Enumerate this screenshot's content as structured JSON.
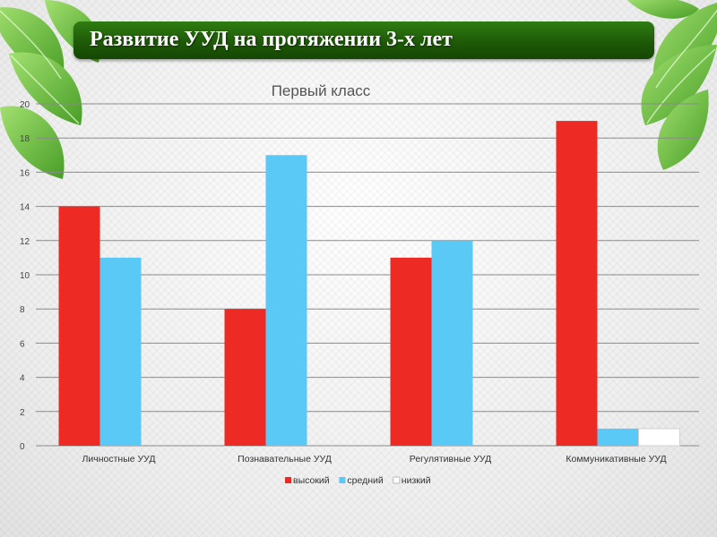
{
  "slide": {
    "title": "Развитие УУД на протяжении 3-х лет"
  },
  "colors": {
    "title_bar": "#1d5707",
    "series_high": "#ee2a24",
    "series_mid": "#5bc9f5",
    "series_low": "#ffffff",
    "leaf": "#5ab82c"
  },
  "icons": [
    "leaf-decoration-icon"
  ],
  "chart_data": {
    "type": "bar",
    "title": "Первый класс",
    "categories": [
      "Личностные УУД",
      "Познавательные УУД",
      "Регулятивные УУД",
      "Коммуникативные УУД"
    ],
    "series": [
      {
        "name": "высокий",
        "values": [
          14,
          8,
          11,
          19
        ],
        "color": "#ee2a24"
      },
      {
        "name": "средний",
        "values": [
          11,
          17,
          12,
          1
        ],
        "color": "#5bc9f5"
      },
      {
        "name": "низкий",
        "values": [
          0,
          0,
          0,
          1
        ],
        "color": "#ffffff"
      }
    ],
    "ylim": [
      0,
      20
    ],
    "yticks": [
      0,
      2,
      4,
      6,
      8,
      10,
      12,
      14,
      16,
      18,
      20
    ],
    "grid": true,
    "legend": "bottom"
  }
}
